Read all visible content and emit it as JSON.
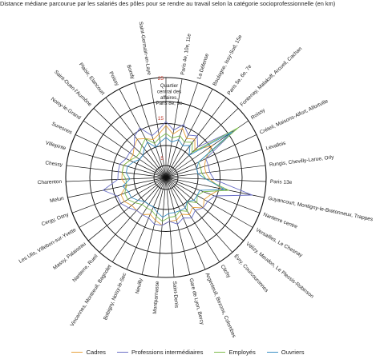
{
  "chart_data": {
    "type": "radar",
    "title": "Distance médiane parcourue par les salariés des pôles pour se rendre au travail selon la catégorie socioprofessionnelle (en km)",
    "axis_ticks": [
      "5",
      "15",
      "25"
    ],
    "rmax": 25,
    "categories": [
      "Quartier central des affaires, Paris 8e, 9e",
      "Paris 4e, 10e, 11e",
      "La Défense",
      "Boulogne, Issy-Sud, 15e",
      "Paris 5e, 6e, 7e",
      "Fontenay, Malakoff, Arcueil, Cachan",
      "Roissy",
      "Créteil, Maisons-Alfort, Alfortville",
      "Levallois",
      "Rungis, Chevilly-Larue, Orly",
      "Paris 13e",
      "Guyancourt, Montigny-le-Bretonneux, Trappes",
      "Nanterre centre",
      "Versailles, Le Chesnay",
      "Vélizy, Meudon, Le Plessis-Robinson",
      "Évry, Courcouronnes",
      "Clichy",
      "Argenteuil, Bezons, Colombes",
      "Gare de Lyon, Bercy",
      "Saint-Denis",
      "Montparnasse",
      "Neuilly",
      "Bobigny, Noisy-le-Sec",
      "Vincennes, Montreuil, Bagnolet",
      "Nanterre, Rueil",
      "Massy, Palaiseau",
      "Les Ulis, Villebon-sur-Yvette",
      "Cergy, Osny",
      "Melun",
      "Charenton",
      "Chessy",
      "Villepinte",
      "Suresnes",
      "Noisy-le-Grand",
      "Saint-Ouen-l'Aumône",
      "Plaisir, Elancourt",
      "Poissy",
      "Bondy",
      "Saint-Germain-en-Laye"
    ],
    "series": [
      {
        "name": "Cadres",
        "color": "#e8a13c",
        "values": [
          13,
          11,
          13,
          11,
          12,
          10,
          14,
          11,
          10,
          10,
          11,
          14,
          12,
          11,
          12,
          10,
          11,
          10,
          11,
          11,
          12,
          11,
          10,
          11,
          11,
          11,
          12,
          12,
          10,
          11,
          11,
          11,
          10,
          10,
          11,
          12,
          11,
          10,
          11
        ]
      },
      {
        "name": "Professions intermédiaires",
        "color": "#6a6fc6",
        "values": [
          14,
          12,
          14,
          12,
          13,
          11,
          21,
          11,
          11,
          11,
          12,
          22,
          13,
          12,
          12,
          11,
          12,
          11,
          12,
          11,
          12,
          12,
          11,
          11,
          11,
          12,
          13,
          13,
          16,
          12,
          12,
          12,
          11,
          11,
          11,
          13,
          14,
          11,
          12
        ]
      },
      {
        "name": "Employés",
        "color": "#7dbb4a",
        "values": [
          11,
          10,
          11,
          10,
          11,
          9,
          22,
          9,
          9,
          9,
          10,
          16,
          10,
          9,
          10,
          8,
          10,
          9,
          10,
          10,
          11,
          10,
          9,
          9,
          9,
          10,
          11,
          11,
          10,
          10,
          11,
          11,
          10,
          9,
          9,
          10,
          11,
          9,
          10
        ]
      },
      {
        "name": "Ouvriers",
        "color": "#3a8fc4",
        "values": [
          10,
          9,
          10,
          9,
          10,
          8,
          20,
          9,
          8,
          8,
          10,
          15,
          9,
          9,
          9,
          8,
          9,
          9,
          9,
          9,
          10,
          9,
          8,
          8,
          8,
          9,
          10,
          10,
          11,
          9,
          10,
          10,
          9,
          8,
          8,
          9,
          10,
          8,
          9
        ]
      }
    ]
  }
}
